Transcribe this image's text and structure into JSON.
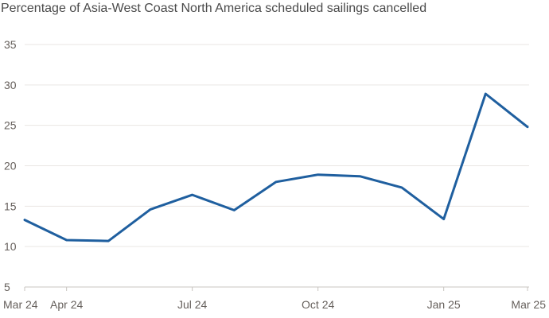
{
  "chart_data": {
    "type": "line",
    "title": "Percentage of Asia-West Coast North America scheduled sailings cancelled",
    "xlabel": "",
    "ylabel": "",
    "ylim": [
      5,
      35
    ],
    "y_ticks": [
      5,
      10,
      15,
      20,
      25,
      30,
      35
    ],
    "grid": true,
    "x_ticks": [
      "Mar 24",
      "Apr 24",
      "Jul 24",
      "Oct 24",
      "Jan 25",
      "Mar 25"
    ],
    "x": [
      "2024-03",
      "2024-04",
      "2024-05",
      "2024-06",
      "2024-07",
      "2024-08",
      "2024-09",
      "2024-10",
      "2024-11",
      "2024-12",
      "2025-01",
      "2025-02",
      "2025-03"
    ],
    "series": [
      {
        "values": [
          13.3,
          10.8,
          10.7,
          14.6,
          16.4,
          14.5,
          18.0,
          18.9,
          18.7,
          17.3,
          13.4,
          28.9,
          24.8
        ],
        "color": "#1f5f9f"
      }
    ]
  }
}
